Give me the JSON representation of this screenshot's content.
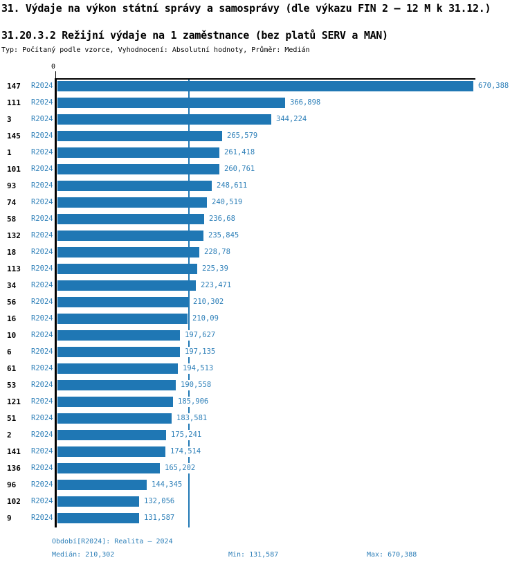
{
  "title": "31. Výdaje na výkon státní správy a samosprávy (dle výkazu FIN 2 – 12 M k 31.12.)",
  "subtitle": "31.20.3.2 Režijní výdaje na 1 zaměstnance (bez platů SERV a MAN)",
  "meta": "Typ: Počítaný podle vzorce, Vyhodnocení: Absolutní hodnoty, Průměr: Medián",
  "axis": {
    "zero_label": "0"
  },
  "chart_data": {
    "type": "bar",
    "orientation": "horizontal",
    "title": "31.20.3.2 Režijní výdaje na 1 zaměstnance (bez platů SERV a MAN)",
    "series_name": "R2024",
    "categories": [
      "147",
      "111",
      "3",
      "145",
      "1",
      "101",
      "93",
      "74",
      "58",
      "132",
      "18",
      "113",
      "34",
      "56",
      "16",
      "10",
      "6",
      "61",
      "53",
      "121",
      "51",
      "2",
      "141",
      "136",
      "96",
      "102",
      "9"
    ],
    "values": [
      670.388,
      366.898,
      344.224,
      265.579,
      261.418,
      260.761,
      248.611,
      240.519,
      236.68,
      235.845,
      228.78,
      225.39,
      223.471,
      210.302,
      210.09,
      197.627,
      197.135,
      194.513,
      190.558,
      185.906,
      183.581,
      175.241,
      174.514,
      165.202,
      144.345,
      132.056,
      131.587
    ],
    "value_labels": [
      "670,388",
      "366,898",
      "344,224",
      "265,579",
      "261,418",
      "260,761",
      "248,611",
      "240,519",
      "236,68",
      "235,845",
      "228,78",
      "225,39",
      "223,471",
      "210,302",
      "210,09",
      "197,627",
      "197,135",
      "194,513",
      "190,558",
      "185,906",
      "183,581",
      "175,241",
      "174,514",
      "165,202",
      "144,345",
      "132,056",
      "131,587"
    ],
    "xlim": [
      0,
      670.388
    ],
    "median_value": 210.302,
    "median_label": "210,302",
    "min_label": "131,587",
    "max_label": "670,388",
    "bar_color": "#1f77b4",
    "label_color": "#2d7fb8",
    "axis_color": "#000000",
    "legend_position": "none",
    "grid": false
  },
  "footer": {
    "period": "Období[R2024]: Realita – 2024",
    "median": "Medián: 210,302",
    "min": "Min: 131,587",
    "max": "Max: 670,388"
  }
}
